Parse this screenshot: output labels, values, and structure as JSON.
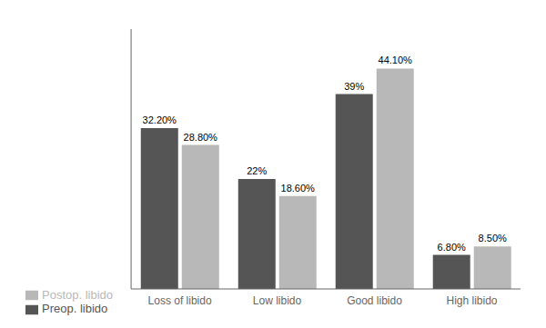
{
  "chart_data": {
    "type": "bar",
    "categories": [
      "Loss of libido",
      "Low libido",
      "Good libido",
      "High libido"
    ],
    "series": [
      {
        "name": "Preop. libido",
        "color": "#555555",
        "values": [
          32.2,
          22.0,
          39.0,
          6.8
        ],
        "value_labels": [
          "32.20%",
          "22%",
          "39%",
          "6.80%"
        ]
      },
      {
        "name": "Postop. libido",
        "color": "#b8b8b8",
        "values": [
          28.8,
          18.6,
          44.1,
          8.5
        ],
        "value_labels": [
          "28.80%",
          "18.60%",
          "44.10%",
          "8.50%"
        ]
      }
    ],
    "ylim": [
      0,
      52
    ],
    "data_labels": true,
    "grid": false,
    "legend": "lower left",
    "tick_labels": "x"
  }
}
